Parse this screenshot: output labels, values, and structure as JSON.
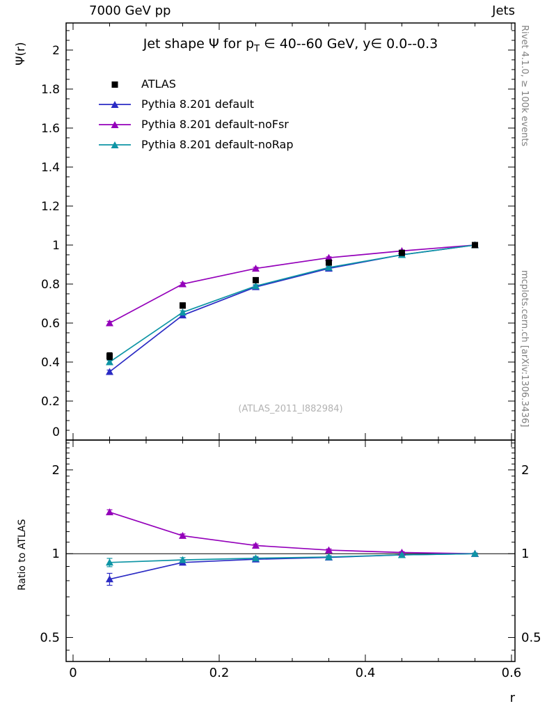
{
  "header": {
    "left": "7000 GeV pp",
    "right": "Jets"
  },
  "side_notes": {
    "top_right": "Rivet 4.1.0, ≥ 100k events",
    "bottom_right": "mcplots.cern.ch [arXiv:1306.3436]"
  },
  "watermark": "(ATLAS_2011_I882984)",
  "title": {
    "pre": "Jet shape Ψ for p",
    "sub": "T",
    "post": " ∈ 40--60 GeV, y∈ 0.0--0.3"
  },
  "axis_labels": {
    "y_top": "Ψ(r)",
    "y_bottom": "Ratio to ATLAS",
    "x": "r"
  },
  "colors": {
    "frame": "#000000",
    "atlas": "#000000",
    "watermark": "#b3b3b3",
    "side_note": "#808080"
  },
  "chart_data": {
    "type": "line",
    "title": "Jet shape Ψ for p_T ∈ 40--60 GeV, y∈ 0.0--0.3",
    "xlabel": "r",
    "ylabel_top": "Ψ(r)",
    "ylabel_bottom": "Ratio to ATLAS",
    "legend_position": "top-left",
    "grid": false,
    "x": [
      0.05,
      0.15,
      0.25,
      0.35,
      0.45,
      0.55
    ],
    "xlim": [
      -0.0095,
      0.6048
    ],
    "xticks": [
      0,
      0.2,
      0.4,
      0.6
    ],
    "xtick_labels": [
      "0",
      "0.2",
      "0.4",
      "0.6"
    ],
    "top_panel": {
      "scale": "linear",
      "ylim": [
        0,
        2.139
      ],
      "yticks": [
        0,
        0.2,
        0.4,
        0.6,
        0.8,
        1,
        1.2,
        1.4,
        1.6,
        1.8,
        2
      ],
      "ytick_labels": [
        "0",
        "0.2",
        "0.4",
        "0.6",
        "0.8",
        "1",
        "1.2",
        "1.4",
        "1.6",
        "1.8",
        "2"
      ]
    },
    "bottom_panel": {
      "scale": "log",
      "ylim": [
        0.41,
        2.56
      ],
      "yticks": [
        0.5,
        1,
        2
      ],
      "ytick_labels": [
        "0.5",
        "1",
        "2"
      ],
      "ref_line": 1
    },
    "series": [
      {
        "name": "ATLAS",
        "marker": "square",
        "color": "#000000",
        "line": false,
        "values": [
          0.43,
          0.69,
          0.82,
          0.91,
          0.96,
          1.0
        ],
        "errors": [
          0.018,
          0.014,
          0.011,
          0.008,
          0.005,
          0.004
        ]
      },
      {
        "name": "Pythia 8.201 default",
        "marker": "triangle",
        "color": "#2b2bc4",
        "line": true,
        "values": [
          0.35,
          0.64,
          0.785,
          0.88,
          0.95,
          1.0
        ],
        "errors": [
          0.009,
          0.008,
          0.008,
          0.006,
          0.005,
          0.004
        ],
        "ratio": [
          0.81,
          0.93,
          0.955,
          0.97,
          0.99,
          1.0
        ],
        "ratio_errors": [
          0.04,
          0.02,
          0.015,
          0.012,
          0.008,
          0.005
        ]
      },
      {
        "name": "Pythia 8.201 default-noFsr",
        "marker": "triangle",
        "color": "#9400ba",
        "line": true,
        "values": [
          0.6,
          0.8,
          0.88,
          0.935,
          0.97,
          1.0
        ],
        "errors": [
          0.009,
          0.007,
          0.006,
          0.005,
          0.004,
          0.003
        ],
        "ratio": [
          1.41,
          1.16,
          1.07,
          1.03,
          1.01,
          1.0
        ],
        "ratio_errors": [
          0.028,
          0.017,
          0.013,
          0.01,
          0.007,
          0.004
        ]
      },
      {
        "name": "Pythia 8.201 default-noRap",
        "marker": "triangle",
        "color": "#0e95a5",
        "line": true,
        "values": [
          0.4,
          0.655,
          0.79,
          0.885,
          0.95,
          1.0
        ],
        "errors": [
          0.009,
          0.008,
          0.007,
          0.006,
          0.005,
          0.004
        ],
        "ratio": [
          0.93,
          0.95,
          0.963,
          0.973,
          0.99,
          1.0
        ],
        "ratio_errors": [
          0.032,
          0.018,
          0.014,
          0.011,
          0.008,
          0.005
        ]
      }
    ]
  }
}
